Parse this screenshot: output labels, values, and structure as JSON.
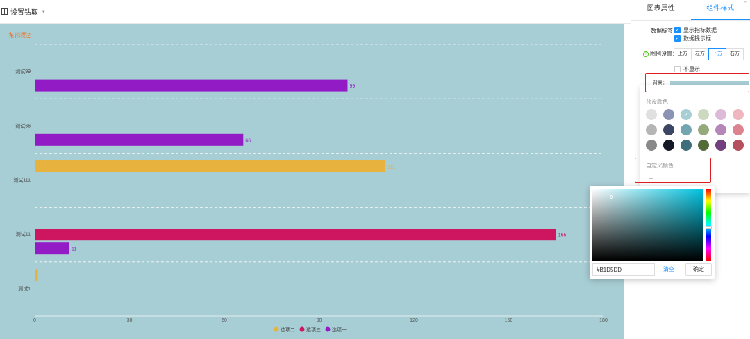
{
  "topbar": {
    "title": "设置钻取",
    "caret": "▾"
  },
  "panel": {
    "tabs": [
      {
        "label": "图表属性"
      },
      {
        "label": "组件样式"
      }
    ],
    "data_label": {
      "label": "数据标签：",
      "options": [
        {
          "label": "显示指标数据",
          "checked": true
        },
        {
          "label": "数据提示框",
          "checked": true
        }
      ]
    },
    "legend": {
      "label": "图例设置：",
      "help_icon": "?",
      "positions": [
        "上方",
        "左方",
        "下方",
        "右方"
      ],
      "selected": "下方",
      "hide_label": "不显示"
    },
    "background": {
      "label": "背景：",
      "color": "#A8CED5"
    }
  },
  "color_popover": {
    "preset_label": "预设颜色",
    "check_mark": "✓",
    "presets": [
      "#e0e0e0",
      "#8a93b4",
      "#A8CED5",
      "#cdd9bf",
      "#dcbbd9",
      "#f0b5be",
      "#b5b5b5",
      "#3a4664",
      "#73a6b1",
      "#96a97a",
      "#b586b8",
      "#dd8390",
      "#898989",
      "#151826",
      "#3f6f7a",
      "#546b3a",
      "#733f7e",
      "#b64f5e"
    ],
    "selected_index": 2,
    "custom_label": "自定义颜色",
    "add_label": "+"
  },
  "color_picker": {
    "hex": "#B1D5DD",
    "hue_color": "#00C3E0",
    "clear_label": "清空",
    "ok_label": "确定"
  },
  "chart_data": {
    "type": "bar",
    "orientation": "horizontal",
    "title": "条形图2",
    "background": "#A8CED5",
    "categories": [
      "测试1",
      "测试11",
      "测试111",
      "测试66",
      "测试99"
    ],
    "series": [
      {
        "name": "选项二",
        "color": "#E8B23E",
        "values": [
          1,
          null,
          111,
          null,
          null
        ]
      },
      {
        "name": "选项三",
        "color": "#CE1560",
        "values": [
          null,
          165,
          null,
          null,
          null
        ]
      },
      {
        "name": "选项一",
        "color": "#921BC6",
        "values": [
          null,
          11,
          null,
          66,
          99
        ]
      }
    ],
    "data_labels": {
      "测试11": {
        "选项三": "165",
        "选项一": "11"
      },
      "测试66": {
        "选项一": "66"
      },
      "测试99": {
        "选项一": "99"
      },
      "测试111": {
        "选项二": "111"
      }
    },
    "xlim": [
      0,
      180
    ],
    "xticks": [
      0,
      30,
      60,
      90,
      120,
      150,
      180
    ],
    "grid": true,
    "legend_position": "bottom"
  },
  "corner_mark": "∞"
}
